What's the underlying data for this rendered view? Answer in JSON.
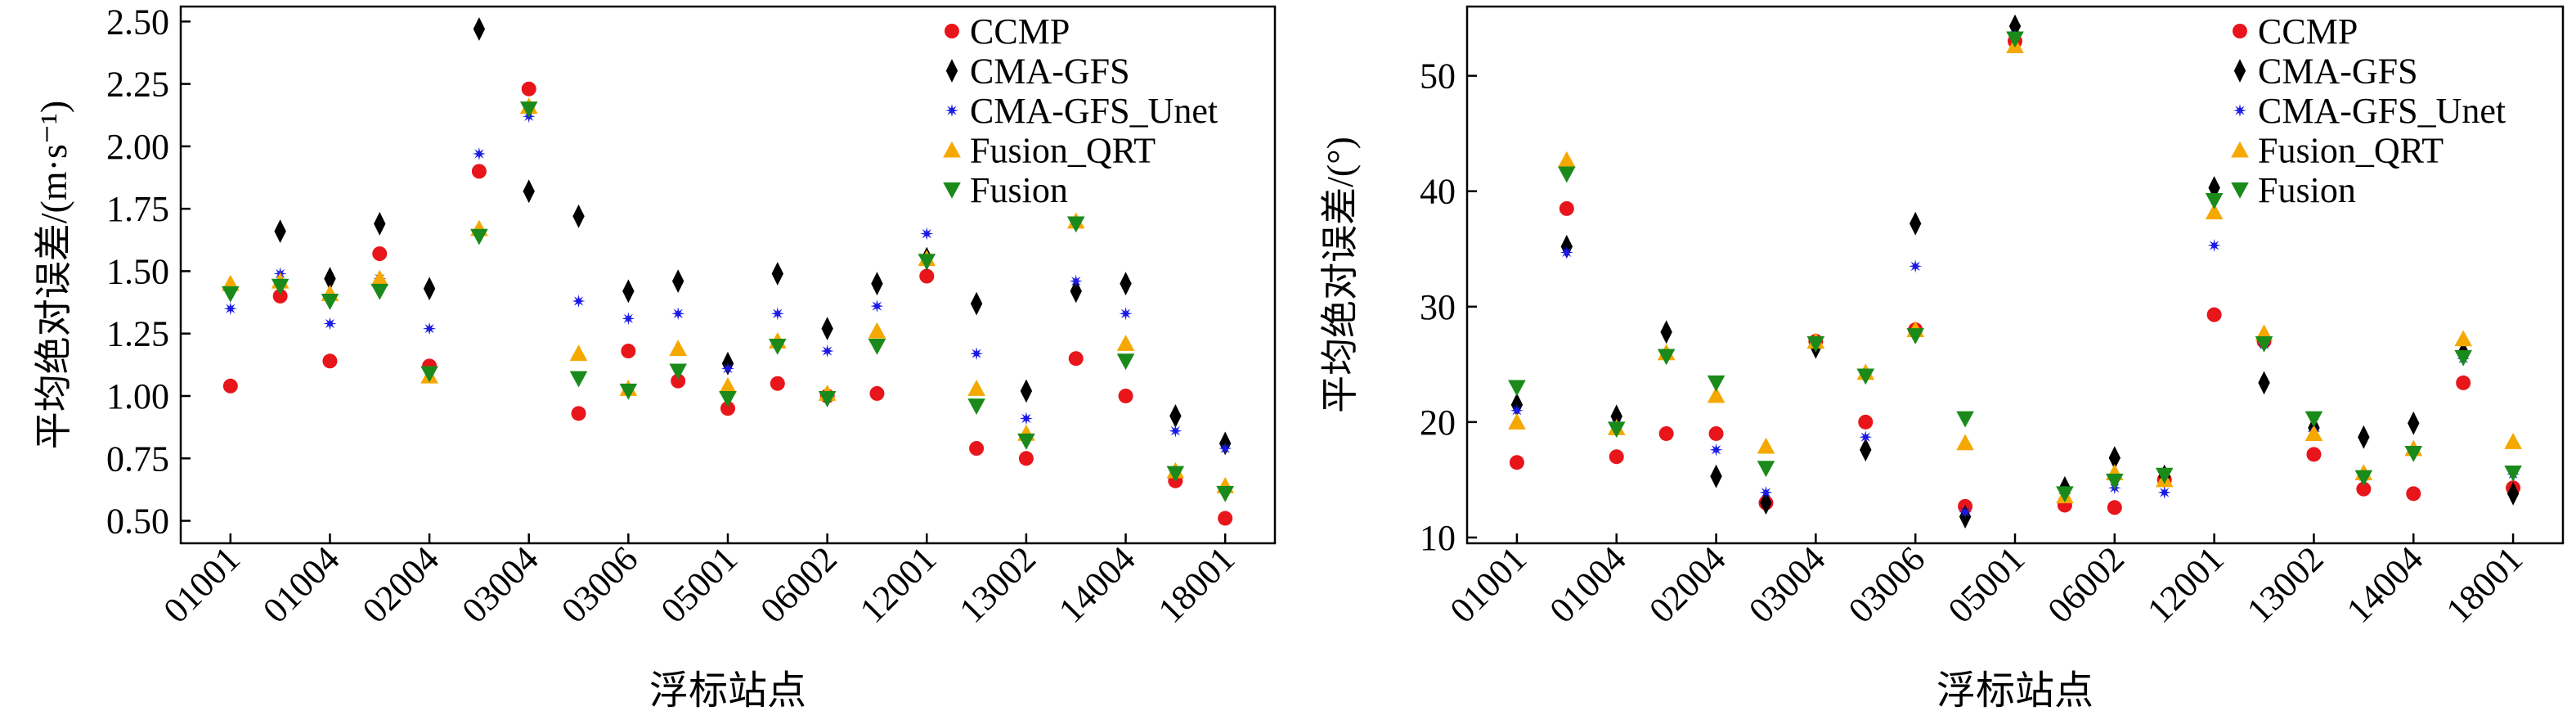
{
  "chart_data": [
    {
      "type": "scatter",
      "ylabel": "平均绝对误差/(m·s⁻¹)",
      "xlabel": "浮标站点",
      "legend": "upper right",
      "categories": [
        "01001",
        null,
        "01004",
        null,
        "02004",
        null,
        "03004",
        null,
        "03006",
        null,
        "05001",
        null,
        "06002",
        null,
        "12001",
        null,
        "13002",
        null,
        "14004",
        null,
        "18001"
      ],
      "ylim": [
        0.41,
        2.56
      ],
      "yticks": [
        {
          "value": 0.5,
          "label": "0.50"
        },
        {
          "value": 0.75,
          "label": "0.75"
        },
        {
          "value": 1,
          "label": "1.00"
        },
        {
          "value": 1.25,
          "label": "1.25"
        },
        {
          "value": 1.5,
          "label": "1.50"
        },
        {
          "value": 1.75,
          "label": "1.75"
        },
        {
          "value": 2,
          "label": "2.00"
        },
        {
          "value": 2.25,
          "label": "2.25"
        },
        {
          "value": 2.5,
          "label": "2.50"
        }
      ],
      "series": [
        {
          "name": "CCMP",
          "color": "#e8151b",
          "marker": "circle",
          "values": [
            1.04,
            1.4,
            1.14,
            1.57,
            1.12,
            1.9,
            2.23,
            0.93,
            1.18,
            1.06,
            0.95,
            1.05,
            1.0,
            1.01,
            1.48,
            0.79,
            0.75,
            1.15,
            1.0,
            0.66,
            0.51
          ]
        },
        {
          "name": "CMA-GFS",
          "color": "#000000",
          "marker": "diamond",
          "values": [
            1.43,
            1.66,
            1.47,
            1.69,
            1.43,
            2.47,
            1.82,
            1.72,
            1.42,
            1.46,
            1.13,
            1.49,
            1.27,
            1.45,
            1.55,
            1.37,
            1.02,
            1.42,
            1.45,
            0.92,
            0.81
          ]
        },
        {
          "name": "CMA-GFS_Unet",
          "color": "#1a1ae6",
          "marker": "star",
          "values": [
            1.35,
            1.49,
            1.29,
            1.47,
            1.27,
            1.97,
            2.12,
            1.38,
            1.31,
            1.33,
            1.11,
            1.33,
            1.18,
            1.36,
            1.65,
            1.17,
            0.91,
            1.46,
            1.33,
            0.86,
            0.79
          ]
        },
        {
          "name": "Fusion_QRT",
          "color": "#f5a800",
          "marker": "triangle-up",
          "values": [
            1.45,
            1.46,
            1.41,
            1.47,
            1.08,
            1.67,
            2.16,
            1.17,
            1.03,
            1.19,
            1.04,
            1.22,
            1.01,
            1.26,
            1.55,
            1.03,
            0.85,
            1.7,
            1.21,
            0.7,
            0.64
          ]
        },
        {
          "name": "Fusion",
          "color": "#1a8a1a",
          "marker": "triangle-down",
          "values": [
            1.41,
            1.44,
            1.38,
            1.42,
            1.09,
            1.64,
            2.15,
            1.07,
            1.02,
            1.1,
            0.99,
            1.2,
            0.99,
            1.2,
            1.54,
            0.96,
            0.82,
            1.69,
            1.14,
            0.69,
            0.61
          ]
        }
      ]
    },
    {
      "type": "scatter",
      "ylabel": "平均绝对误差/(°)",
      "xlabel": "浮标站点",
      "legend": "upper right",
      "categories": [
        "01001",
        null,
        "01004",
        null,
        "02004",
        null,
        "03004",
        null,
        "03006",
        null,
        "05001",
        null,
        "06002",
        null,
        "12001",
        null,
        "13002",
        null,
        "14004",
        null,
        "18001"
      ],
      "ylim": [
        9.5,
        56
      ],
      "yticks": [
        10,
        20,
        30,
        40,
        50
      ],
      "series": [
        {
          "name": "CCMP",
          "color": "#e8151b",
          "marker": "circle",
          "values": [
            16.5,
            38.5,
            17,
            19,
            19,
            13,
            27,
            20,
            28,
            12.7,
            53,
            12.8,
            12.6,
            15,
            29.3,
            27,
            17.2,
            14.2,
            13.8,
            23.4,
            14.3
          ]
        },
        {
          "name": "CMA-GFS",
          "color": "#000000",
          "marker": "diamond",
          "values": [
            21.5,
            35.2,
            20.5,
            27.8,
            15.3,
            13,
            26.5,
            17.6,
            37.2,
            11.8,
            54.3,
            14.3,
            16.9,
            15.3,
            40.3,
            23.4,
            19.5,
            18.7,
            19.9,
            26,
            13.8
          ]
        },
        {
          "name": "CMA-GFS_Unet",
          "color": "#1a1ae6",
          "marker": "star",
          "values": [
            21,
            34.7,
            19.8,
            25.8,
            17.6,
            13.9,
            26.8,
            18.7,
            33.5,
            12.2,
            53.5,
            13.8,
            14.3,
            13.9,
            35.3,
            26.7,
            19.2,
            15.3,
            17.5,
            25.5,
            15.5
          ]
        },
        {
          "name": "Fusion_QRT",
          "color": "#f5a800",
          "marker": "triangle-up",
          "values": [
            20,
            42.7,
            19.5,
            26,
            22.3,
            17.9,
            27,
            24.3,
            28,
            18.2,
            52.6,
            13.6,
            15.6,
            15,
            38.2,
            27.7,
            19,
            15.6,
            17.7,
            27.2,
            18.3
          ]
        },
        {
          "name": "Fusion",
          "color": "#1a8a1a",
          "marker": "triangle-down",
          "values": [
            23,
            41.5,
            19.4,
            25.7,
            23.4,
            16,
            26.8,
            24,
            27.5,
            20.3,
            53.2,
            13.8,
            14.9,
            15.4,
            39.2,
            26.8,
            20.3,
            15.2,
            17.3,
            25.6,
            15.6
          ]
        }
      ]
    }
  ]
}
